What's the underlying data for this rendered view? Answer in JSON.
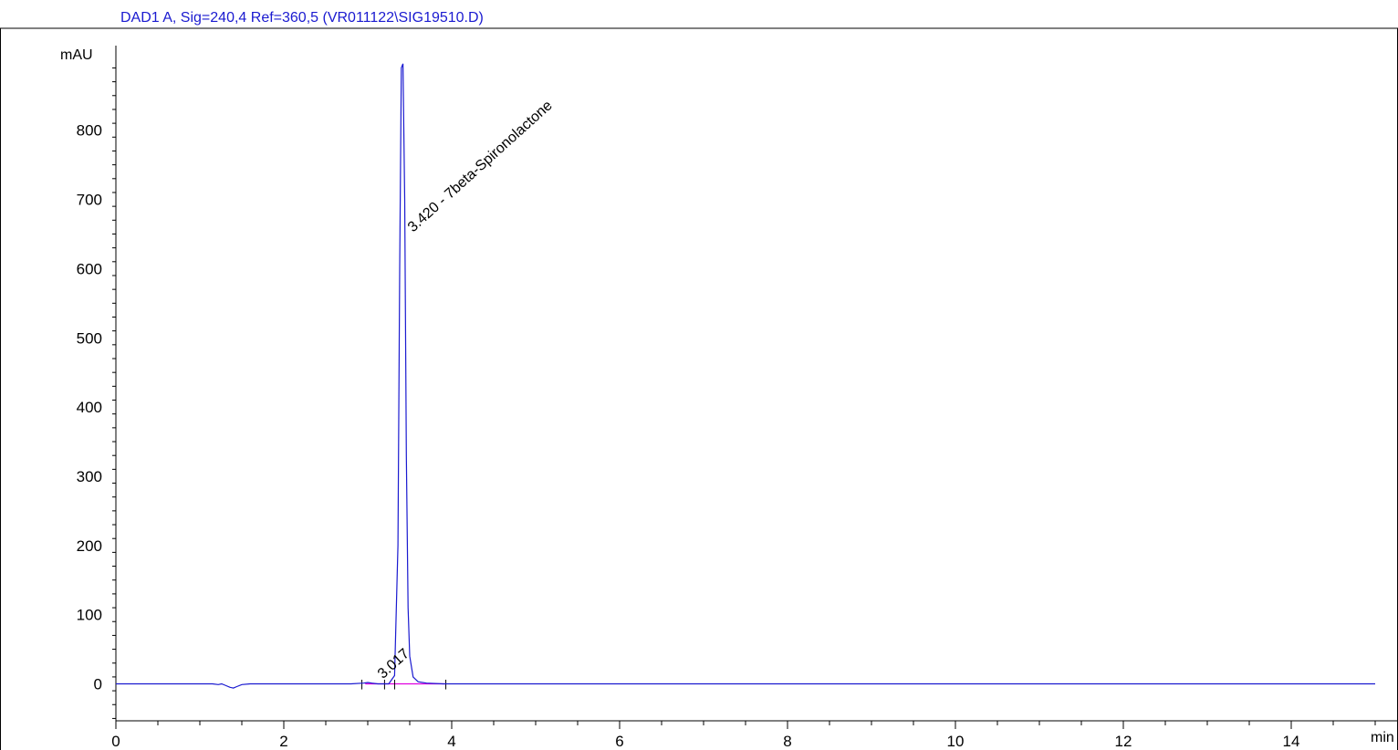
{
  "title": "DAD1 A, Sig=240,4 Ref=360,5 (VR011122\\SIG19510.D)",
  "colors": {
    "frame": "#000000",
    "trace": "#1a1ad0",
    "title": "#1a1ad0",
    "baseline": "#e000e0"
  },
  "chart_data": {
    "type": "line",
    "title": "DAD1 A, Sig=240,4 Ref=360,5 (VR011122\\SIG19510.D)",
    "xlabel": "min",
    "ylabel": "mAU",
    "xlim": [
      0,
      15
    ],
    "ylim": [
      -55,
      930
    ],
    "x_ticks": [
      0,
      2,
      4,
      6,
      8,
      10,
      12,
      14
    ],
    "x_tick_labels": [
      "0",
      "2",
      "4",
      "6",
      "8",
      "10",
      "12",
      "14"
    ],
    "y_ticks": [
      0,
      100,
      200,
      300,
      400,
      500,
      600,
      700,
      800
    ],
    "y_tick_labels": [
      "0",
      "100",
      "200",
      "300",
      "400",
      "500",
      "600",
      "700",
      "800"
    ],
    "grid": false,
    "series": [
      {
        "color": "#1a1ad0",
        "x": [
          0,
          1.15,
          1.22,
          1.26,
          1.3,
          1.36,
          1.4,
          1.44,
          1.5,
          1.6,
          2.8,
          2.95,
          3.0,
          3.05,
          3.12,
          3.25,
          3.32,
          3.36,
          3.38,
          3.4,
          3.42,
          3.44,
          3.46,
          3.48,
          3.5,
          3.54,
          3.6,
          3.7,
          3.9,
          15
        ],
        "y": [
          0,
          0,
          -1,
          0,
          -2,
          -5,
          -6,
          -4,
          -1,
          0,
          0,
          1,
          2,
          1,
          0,
          0,
          12,
          200,
          600,
          890,
          896,
          700,
          330,
          110,
          40,
          10,
          3,
          1,
          0,
          0
        ]
      }
    ],
    "peaks": [
      {
        "rt": 3.017,
        "label": "3.017"
      },
      {
        "rt": 3.42,
        "label": "3.420 - 7beta-Spironolactone"
      }
    ]
  }
}
